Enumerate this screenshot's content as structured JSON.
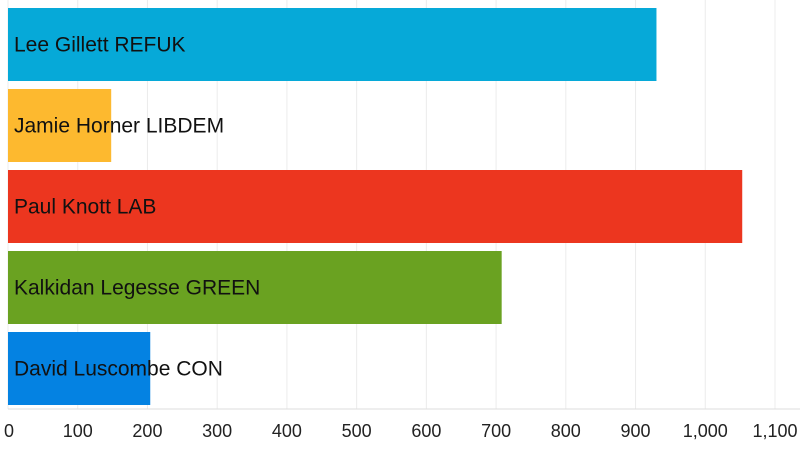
{
  "chart_data": {
    "type": "bar",
    "orientation": "horizontal",
    "title": "",
    "xlabel": "",
    "ylabel": "",
    "xlim": [
      0,
      1100
    ],
    "ticks": [
      0,
      100,
      200,
      300,
      400,
      500,
      600,
      700,
      800,
      900,
      1000,
      1100
    ],
    "tick_labels": [
      "0",
      "100",
      "200",
      "300",
      "400",
      "500",
      "600",
      "700",
      "800",
      "900",
      "1,000",
      "1,100"
    ],
    "grid": true,
    "categories": [
      "Lee Gillett REFUK",
      "Jamie Horner LIBDEM",
      "Paul Knott LAB",
      "Kalkidan Legesse GREEN",
      "David Luscombe CON"
    ],
    "values": [
      930,
      148,
      1053,
      708,
      204
    ],
    "colors": [
      "#06a9d8",
      "#fdb92f",
      "#ec361f",
      "#6aa221",
      "#0482e2"
    ]
  }
}
